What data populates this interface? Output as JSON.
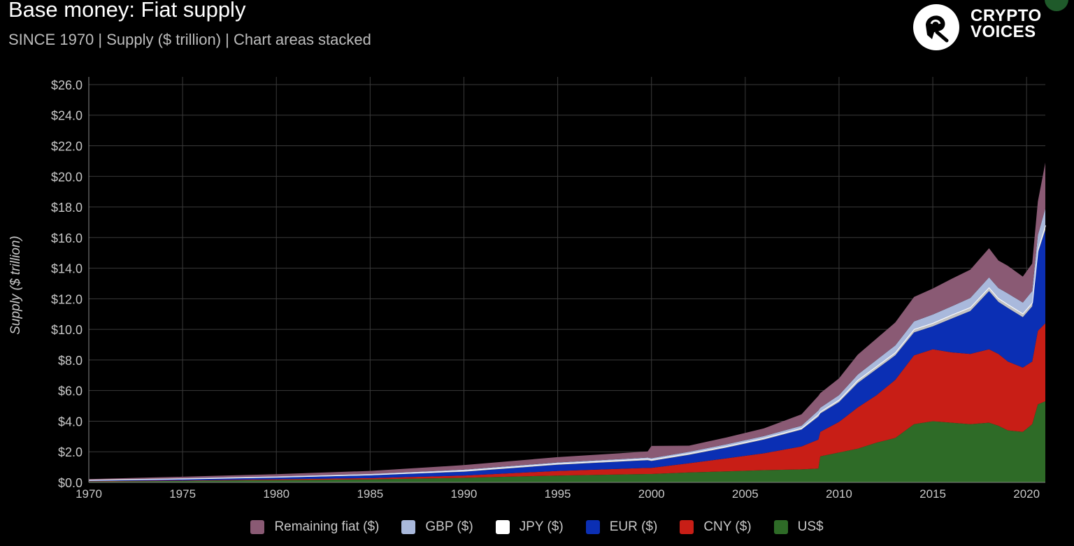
{
  "title": "Base money: Fiat supply",
  "subtitle": "SINCE 1970 | Supply ($ trillion) | Chart areas stacked",
  "logo": {
    "line1": "CRYPTO",
    "line2": "VOICES",
    "icon": "crypto-voices-logo-icon"
  },
  "chart_data": {
    "type": "area",
    "stacked": true,
    "title": "Base money: Fiat supply",
    "subtitle": "SINCE 1970 | Supply ($ trillion) | Chart areas stacked",
    "xlabel": "",
    "ylabel": "Supply ($ trillion)",
    "xlim": [
      1970,
      2021
    ],
    "ylim": [
      0,
      26.5
    ],
    "x_ticks": [
      1970,
      1975,
      1980,
      1985,
      1990,
      1995,
      2000,
      2005,
      2010,
      2015,
      2020
    ],
    "y_ticks": [
      0,
      2,
      4,
      6,
      8,
      10,
      12,
      14,
      16,
      18,
      20,
      22,
      24,
      26
    ],
    "y_tick_labels": [
      "$0.0",
      "$2.0",
      "$4.0",
      "$6.0",
      "$8.0",
      "$10.0",
      "$12.0",
      "$14.0",
      "$16.0",
      "$18.0",
      "$20.0",
      "$22.0",
      "$24.0",
      "$26.0"
    ],
    "grid": true,
    "legend_position": "bottom",
    "x": [
      1970,
      1975,
      1980,
      1985,
      1990,
      1995,
      1999.8,
      2000,
      2002,
      2004,
      2006,
      2008,
      2008.9,
      2009,
      2010,
      2011,
      2012,
      2013,
      2014,
      2015,
      2016,
      2017,
      2018,
      2018.5,
      2019,
      2019.8,
      2020.3,
      2020.6,
      2021
    ],
    "series": [
      {
        "name": "US$",
        "color": "#2e6b27",
        "values": [
          0.06,
          0.1,
          0.15,
          0.2,
          0.3,
          0.45,
          0.55,
          0.55,
          0.65,
          0.72,
          0.8,
          0.85,
          0.9,
          1.7,
          1.95,
          2.2,
          2.6,
          2.9,
          3.8,
          4.0,
          3.9,
          3.8,
          3.9,
          3.7,
          3.4,
          3.3,
          3.8,
          5.1,
          5.3
        ]
      },
      {
        "name": "CNY ($)",
        "color": "#c81e16",
        "values": [
          0.02,
          0.03,
          0.05,
          0.08,
          0.15,
          0.3,
          0.4,
          0.4,
          0.6,
          0.85,
          1.1,
          1.5,
          1.9,
          1.6,
          2.0,
          2.7,
          3.1,
          3.8,
          4.5,
          4.7,
          4.6,
          4.6,
          4.8,
          4.7,
          4.5,
          4.2,
          4.1,
          4.8,
          5.1
        ]
      },
      {
        "name": "EUR ($)",
        "color": "#0b2fb4",
        "values": [
          0.05,
          0.08,
          0.12,
          0.18,
          0.25,
          0.4,
          0.5,
          0.45,
          0.55,
          0.7,
          0.9,
          1.1,
          1.5,
          1.2,
          1.3,
          1.6,
          1.7,
          1.6,
          1.5,
          1.5,
          2.2,
          2.8,
          3.8,
          3.4,
          3.5,
          3.3,
          3.6,
          5.1,
          6.1
        ]
      },
      {
        "name": "JPY ($)",
        "color": "#ffffff",
        "values": [
          0.02,
          0.03,
          0.04,
          0.05,
          0.08,
          0.09,
          0.1,
          0.1,
          0.1,
          0.1,
          0.1,
          0.1,
          0.15,
          0.13,
          0.15,
          0.2,
          0.2,
          0.2,
          0.22,
          0.22,
          0.25,
          0.25,
          0.25,
          0.25,
          0.25,
          0.25,
          0.25,
          0.25,
          0.3
        ]
      },
      {
        "name": "GBP ($)",
        "color": "#a9b9dc",
        "values": [
          0.02,
          0.03,
          0.03,
          0.04,
          0.05,
          0.06,
          0.07,
          0.08,
          0.1,
          0.12,
          0.13,
          0.15,
          0.25,
          0.25,
          0.3,
          0.35,
          0.4,
          0.45,
          0.5,
          0.55,
          0.55,
          0.6,
          0.65,
          0.65,
          0.7,
          0.7,
          0.75,
          0.9,
          1.1
        ]
      },
      {
        "name": "Remaining fiat ($)",
        "color": "#8a5a74",
        "values": [
          0.05,
          0.1,
          0.15,
          0.2,
          0.3,
          0.35,
          0.4,
          0.8,
          0.4,
          0.45,
          0.5,
          0.75,
          0.95,
          0.95,
          1.1,
          1.3,
          1.4,
          1.5,
          1.6,
          1.7,
          1.8,
          1.85,
          1.9,
          1.8,
          1.8,
          1.7,
          1.8,
          2.2,
          3.0
        ]
      }
    ],
    "inner_area_color": "#c4c4c4",
    "legend_order": [
      "Remaining fiat ($)",
      "GBP ($)",
      "JPY ($)",
      "EUR ($)",
      "CNY ($)",
      "US$"
    ]
  }
}
